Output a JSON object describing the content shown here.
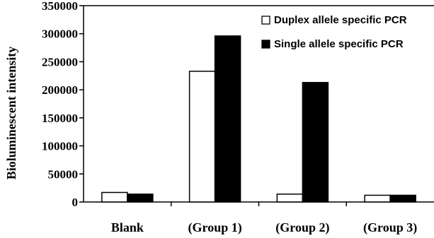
{
  "chart_data": {
    "type": "bar",
    "title": "",
    "xlabel": "",
    "ylabel": "Bioluminescent intensity",
    "ylim": [
      0,
      350000
    ],
    "yticks": [
      0,
      50000,
      100000,
      150000,
      200000,
      250000,
      300000,
      350000
    ],
    "ytick_labels": [
      "0",
      "50000",
      "100000",
      "150000",
      "200000",
      "250000",
      "300000",
      "350000"
    ],
    "categories": [
      "Blank",
      "(Group 1)",
      "(Group 2)",
      "(Group 3)"
    ],
    "series": [
      {
        "name": "Duplex allele specific PCR",
        "values": [
          17000,
          233000,
          14000,
          12000
        ],
        "color": "#ffffff"
      },
      {
        "name": "Single allele specific PCR",
        "values": [
          14000,
          296000,
          213000,
          12000
        ],
        "color": "#000000"
      }
    ],
    "legend": {
      "position": "top-right"
    },
    "grid": false
  }
}
